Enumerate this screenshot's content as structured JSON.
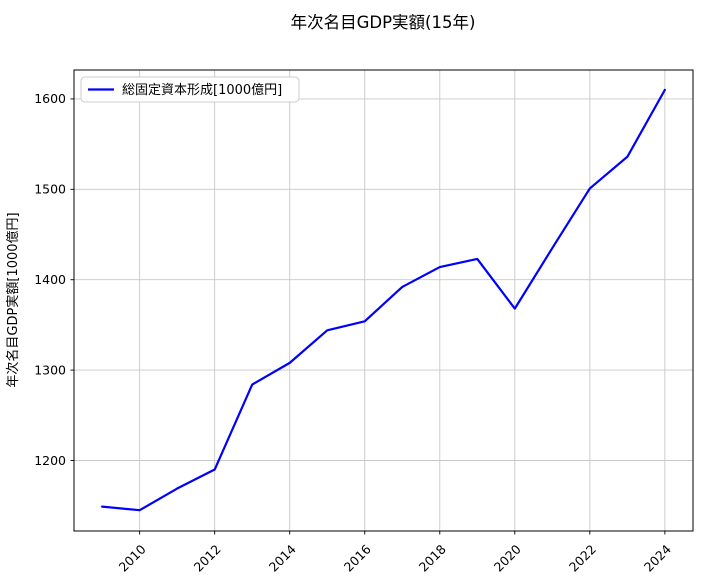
{
  "chart_data": {
    "type": "line",
    "title": "年次名目GDP実額(15年)",
    "xlabel": "",
    "ylabel": "年次名目GDP実額[1000億円]",
    "x": [
      2009,
      2010,
      2011,
      2012,
      2013,
      2014,
      2015,
      2016,
      2017,
      2018,
      2019,
      2020,
      2021,
      2022,
      2023,
      2024
    ],
    "series": [
      {
        "name": "総固定資本形成[1000億円]",
        "color": "#0000ff",
        "values": [
          1149,
          1145,
          1169,
          1190,
          1284,
          1308,
          1344,
          1354,
          1392,
          1414,
          1423,
          1368,
          1435,
          1501,
          1536,
          1610
        ]
      }
    ],
    "xticks": [
      2010,
      2012,
      2014,
      2016,
      2018,
      2020,
      2022,
      2024
    ],
    "yticks": [
      1200,
      1300,
      1400,
      1500,
      1600
    ],
    "xlim": [
      2008.25,
      2024.75
    ],
    "ylim": [
      1122,
      1632
    ],
    "grid": true,
    "grid_color": "#c8c8c8",
    "legend_position": "upper left",
    "xtick_rotation": 45
  }
}
